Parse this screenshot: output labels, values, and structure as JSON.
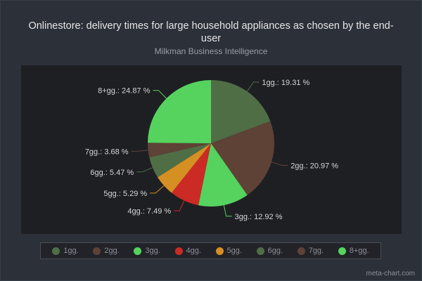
{
  "chart_data": {
    "type": "pie",
    "title": "Onlinestore: delivery times for large household appliances as chosen by the end-user",
    "subtitle": "Milkman Business Intelligence",
    "categories": [
      "1gg.",
      "2gg.",
      "3gg.",
      "4gg.",
      "5gg.",
      "6gg.",
      "7gg.",
      "8+gg."
    ],
    "values": [
      19.31,
      20.97,
      12.92,
      7.49,
      5.29,
      5.47,
      3.68,
      24.87
    ],
    "value_labels": [
      "1gg.: 19.31 %",
      "2gg.: 20.97 %",
      "3gg.: 12.92 %",
      "4gg.: 7.49 %",
      "5gg.: 5.29 %",
      "6gg.: 5.47 %",
      "7gg.: 3.68 %",
      "8+gg.: 24.87 %"
    ],
    "colors": [
      "#4f6e46",
      "#5e4236",
      "#56d35e",
      "#cc2a24",
      "#d68f23",
      "#4f6e46",
      "#5e4236",
      "#56d35e"
    ],
    "legend_position": "bottom"
  },
  "credit": "meta-chart.com"
}
